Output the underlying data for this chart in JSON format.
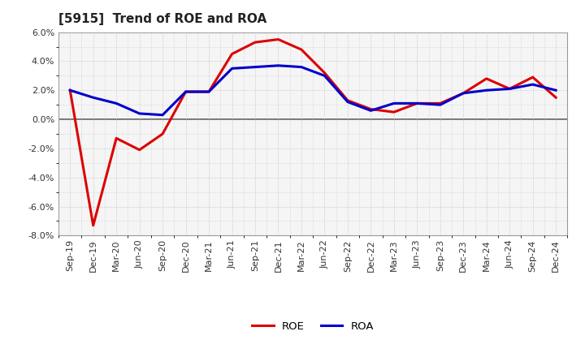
{
  "title": "[5915]  Trend of ROE and ROA",
  "labels": [
    "Sep-19",
    "Dec-19",
    "Mar-20",
    "Jun-20",
    "Sep-20",
    "Dec-20",
    "Mar-21",
    "Jun-21",
    "Sep-21",
    "Dec-21",
    "Mar-22",
    "Jun-22",
    "Sep-22",
    "Dec-22",
    "Mar-23",
    "Jun-23",
    "Sep-23",
    "Dec-23",
    "Mar-24",
    "Jun-24",
    "Sep-24",
    "Dec-24"
  ],
  "roe": [
    2.0,
    -7.3,
    -1.3,
    -2.1,
    -1.0,
    1.9,
    1.9,
    4.5,
    5.3,
    5.5,
    4.8,
    3.2,
    1.3,
    0.7,
    0.5,
    1.1,
    1.1,
    1.8,
    2.8,
    2.1,
    2.9,
    1.5
  ],
  "roa": [
    2.0,
    1.5,
    1.1,
    0.4,
    0.3,
    1.9,
    1.9,
    3.5,
    3.6,
    3.7,
    3.6,
    3.0,
    1.2,
    0.6,
    1.1,
    1.1,
    1.0,
    1.8,
    2.0,
    2.1,
    2.4,
    2.0
  ],
  "roe_color": "#dd0000",
  "roa_color": "#0000cc",
  "ylim": [
    -8.0,
    6.0
  ],
  "yticks": [
    -8.0,
    -6.0,
    -4.0,
    -2.0,
    0.0,
    2.0,
    4.0,
    6.0
  ],
  "bg_color": "#ffffff",
  "plot_bg_color": "#f5f5f5",
  "grid_color": "#bbbbbb",
  "title_fontsize": 11,
  "axis_fontsize": 8,
  "line_width": 2.2
}
